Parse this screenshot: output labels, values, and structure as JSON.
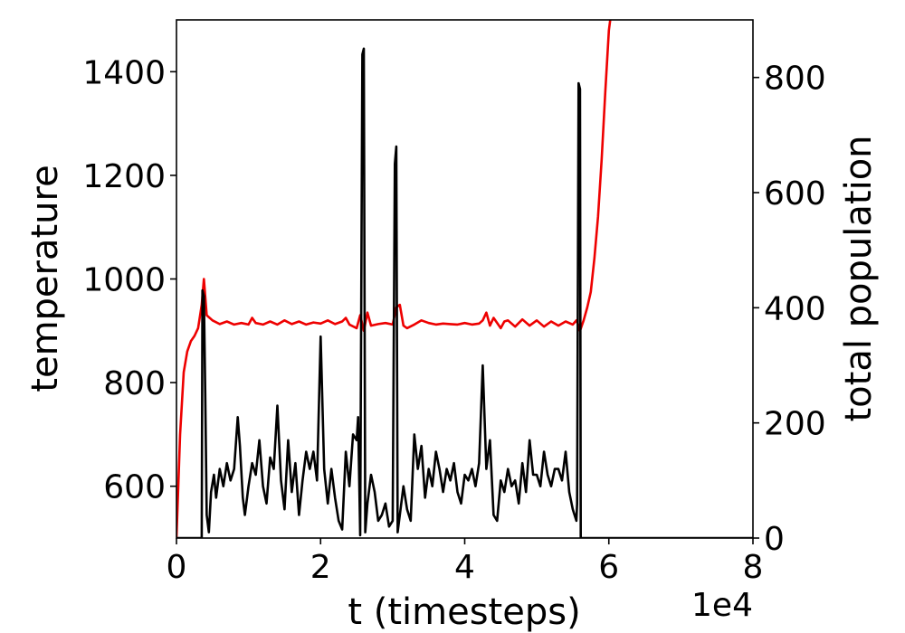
{
  "chart_data": {
    "type": "line",
    "x_axis": {
      "label": "t (timesteps)",
      "range": [
        0,
        8
      ],
      "ticks": [
        0,
        2,
        4,
        6,
        8
      ],
      "tick_labels": [
        "0",
        "2",
        "4",
        "6",
        "8"
      ],
      "offset_text": "1e4"
    },
    "y_axis_left": {
      "label": "temperature",
      "range": [
        500,
        1500
      ],
      "ticks": [
        600,
        800,
        1000,
        1200,
        1400
      ],
      "tick_labels": [
        "600",
        "800",
        "1000",
        "1200",
        "1400"
      ]
    },
    "y_axis_right": {
      "label": "total population",
      "range": [
        0,
        900
      ],
      "ticks": [
        0,
        200,
        400,
        600,
        800
      ],
      "tick_labels": [
        "0",
        "200",
        "400",
        "600",
        "800"
      ]
    },
    "grid": false,
    "legend": "none",
    "series": [
      {
        "axis": "left",
        "color": "#ee0000",
        "points": [
          [
            0.0,
            500
          ],
          [
            0.05,
            700
          ],
          [
            0.1,
            820
          ],
          [
            0.15,
            860
          ],
          [
            0.2,
            880
          ],
          [
            0.25,
            890
          ],
          [
            0.3,
            905
          ],
          [
            0.35,
            950
          ],
          [
            0.38,
            1000
          ],
          [
            0.42,
            930
          ],
          [
            0.5,
            920
          ],
          [
            0.6,
            913
          ],
          [
            0.7,
            918
          ],
          [
            0.8,
            912
          ],
          [
            0.9,
            915
          ],
          [
            1.0,
            912
          ],
          [
            1.05,
            925
          ],
          [
            1.1,
            915
          ],
          [
            1.2,
            912
          ],
          [
            1.3,
            918
          ],
          [
            1.4,
            912
          ],
          [
            1.5,
            920
          ],
          [
            1.6,
            913
          ],
          [
            1.7,
            918
          ],
          [
            1.8,
            912
          ],
          [
            1.9,
            916
          ],
          [
            2.0,
            914
          ],
          [
            2.1,
            920
          ],
          [
            2.2,
            913
          ],
          [
            2.3,
            918
          ],
          [
            2.35,
            925
          ],
          [
            2.4,
            912
          ],
          [
            2.5,
            905
          ],
          [
            2.55,
            930
          ],
          [
            2.6,
            900
          ],
          [
            2.65,
            935
          ],
          [
            2.7,
            910
          ],
          [
            2.8,
            913
          ],
          [
            2.9,
            915
          ],
          [
            3.0,
            912
          ],
          [
            3.05,
            945
          ],
          [
            3.1,
            950
          ],
          [
            3.15,
            910
          ],
          [
            3.2,
            905
          ],
          [
            3.3,
            912
          ],
          [
            3.4,
            920
          ],
          [
            3.5,
            915
          ],
          [
            3.6,
            912
          ],
          [
            3.7,
            914
          ],
          [
            3.8,
            913
          ],
          [
            3.9,
            912
          ],
          [
            4.0,
            915
          ],
          [
            4.1,
            912
          ],
          [
            4.2,
            914
          ],
          [
            4.25,
            920
          ],
          [
            4.3,
            935
          ],
          [
            4.35,
            910
          ],
          [
            4.4,
            925
          ],
          [
            4.5,
            905
          ],
          [
            4.55,
            918
          ],
          [
            4.6,
            920
          ],
          [
            4.7,
            908
          ],
          [
            4.8,
            922
          ],
          [
            4.9,
            910
          ],
          [
            5.0,
            920
          ],
          [
            5.1,
            908
          ],
          [
            5.2,
            918
          ],
          [
            5.3,
            910
          ],
          [
            5.4,
            918
          ],
          [
            5.5,
            912
          ],
          [
            5.55,
            920
          ],
          [
            5.58,
            910
          ],
          [
            5.6,
            900
          ],
          [
            5.65,
            920
          ],
          [
            5.7,
            945
          ],
          [
            5.75,
            975
          ],
          [
            5.8,
            1040
          ],
          [
            5.85,
            1120
          ],
          [
            5.9,
            1230
          ],
          [
            5.95,
            1360
          ],
          [
            6.0,
            1480
          ],
          [
            6.02,
            1500
          ]
        ]
      },
      {
        "axis": "right",
        "color": "#000000",
        "points": [
          [
            0.0,
            0
          ],
          [
            0.35,
            0
          ],
          [
            0.36,
            430
          ],
          [
            0.38,
            420
          ],
          [
            0.4,
            250
          ],
          [
            0.42,
            40
          ],
          [
            0.45,
            10
          ],
          [
            0.48,
            80
          ],
          [
            0.52,
            110
          ],
          [
            0.55,
            70
          ],
          [
            0.6,
            120
          ],
          [
            0.65,
            90
          ],
          [
            0.7,
            130
          ],
          [
            0.75,
            100
          ],
          [
            0.8,
            120
          ],
          [
            0.85,
            210
          ],
          [
            0.88,
            160
          ],
          [
            0.92,
            70
          ],
          [
            0.95,
            40
          ],
          [
            1.0,
            90
          ],
          [
            1.05,
            130
          ],
          [
            1.1,
            110
          ],
          [
            1.15,
            170
          ],
          [
            1.2,
            90
          ],
          [
            1.25,
            60
          ],
          [
            1.3,
            140
          ],
          [
            1.35,
            120
          ],
          [
            1.4,
            230
          ],
          [
            1.45,
            100
          ],
          [
            1.5,
            50
          ],
          [
            1.55,
            170
          ],
          [
            1.6,
            80
          ],
          [
            1.65,
            130
          ],
          [
            1.7,
            40
          ],
          [
            1.75,
            100
          ],
          [
            1.8,
            150
          ],
          [
            1.85,
            120
          ],
          [
            1.9,
            150
          ],
          [
            1.95,
            100
          ],
          [
            2.0,
            350
          ],
          [
            2.05,
            120
          ],
          [
            2.1,
            60
          ],
          [
            2.15,
            120
          ],
          [
            2.2,
            70
          ],
          [
            2.25,
            30
          ],
          [
            2.3,
            15
          ],
          [
            2.35,
            150
          ],
          [
            2.4,
            90
          ],
          [
            2.45,
            180
          ],
          [
            2.5,
            170
          ],
          [
            2.52,
            210
          ],
          [
            2.55,
            5
          ],
          [
            2.58,
            840
          ],
          [
            2.6,
            850
          ],
          [
            2.62,
            10
          ],
          [
            2.65,
            60
          ],
          [
            2.7,
            110
          ],
          [
            2.75,
            80
          ],
          [
            2.8,
            30
          ],
          [
            2.85,
            40
          ],
          [
            2.9,
            60
          ],
          [
            2.95,
            20
          ],
          [
            3.0,
            30
          ],
          [
            3.03,
            650
          ],
          [
            3.05,
            680
          ],
          [
            3.07,
            10
          ],
          [
            3.1,
            40
          ],
          [
            3.15,
            90
          ],
          [
            3.2,
            50
          ],
          [
            3.25,
            30
          ],
          [
            3.3,
            180
          ],
          [
            3.35,
            120
          ],
          [
            3.4,
            160
          ],
          [
            3.45,
            70
          ],
          [
            3.5,
            120
          ],
          [
            3.55,
            90
          ],
          [
            3.6,
            150
          ],
          [
            3.65,
            120
          ],
          [
            3.7,
            80
          ],
          [
            3.75,
            120
          ],
          [
            3.8,
            100
          ],
          [
            3.85,
            130
          ],
          [
            3.9,
            80
          ],
          [
            3.95,
            60
          ],
          [
            4.0,
            110
          ],
          [
            4.05,
            100
          ],
          [
            4.1,
            120
          ],
          [
            4.15,
            90
          ],
          [
            4.2,
            130
          ],
          [
            4.25,
            300
          ],
          [
            4.3,
            120
          ],
          [
            4.35,
            170
          ],
          [
            4.4,
            40
          ],
          [
            4.45,
            30
          ],
          [
            4.5,
            100
          ],
          [
            4.55,
            80
          ],
          [
            4.6,
            120
          ],
          [
            4.65,
            90
          ],
          [
            4.7,
            100
          ],
          [
            4.75,
            60
          ],
          [
            4.8,
            130
          ],
          [
            4.85,
            80
          ],
          [
            4.9,
            170
          ],
          [
            4.95,
            110
          ],
          [
            5.0,
            110
          ],
          [
            5.05,
            90
          ],
          [
            5.1,
            150
          ],
          [
            5.15,
            110
          ],
          [
            5.2,
            90
          ],
          [
            5.25,
            120
          ],
          [
            5.3,
            120
          ],
          [
            5.35,
            100
          ],
          [
            5.4,
            150
          ],
          [
            5.45,
            80
          ],
          [
            5.5,
            50
          ],
          [
            5.55,
            30
          ],
          [
            5.56,
            60
          ],
          [
            5.58,
            790
          ],
          [
            5.6,
            780
          ],
          [
            5.61,
            0
          ],
          [
            6.0,
            0
          ],
          [
            7.0,
            0
          ],
          [
            8.0,
            0
          ]
        ]
      }
    ]
  }
}
